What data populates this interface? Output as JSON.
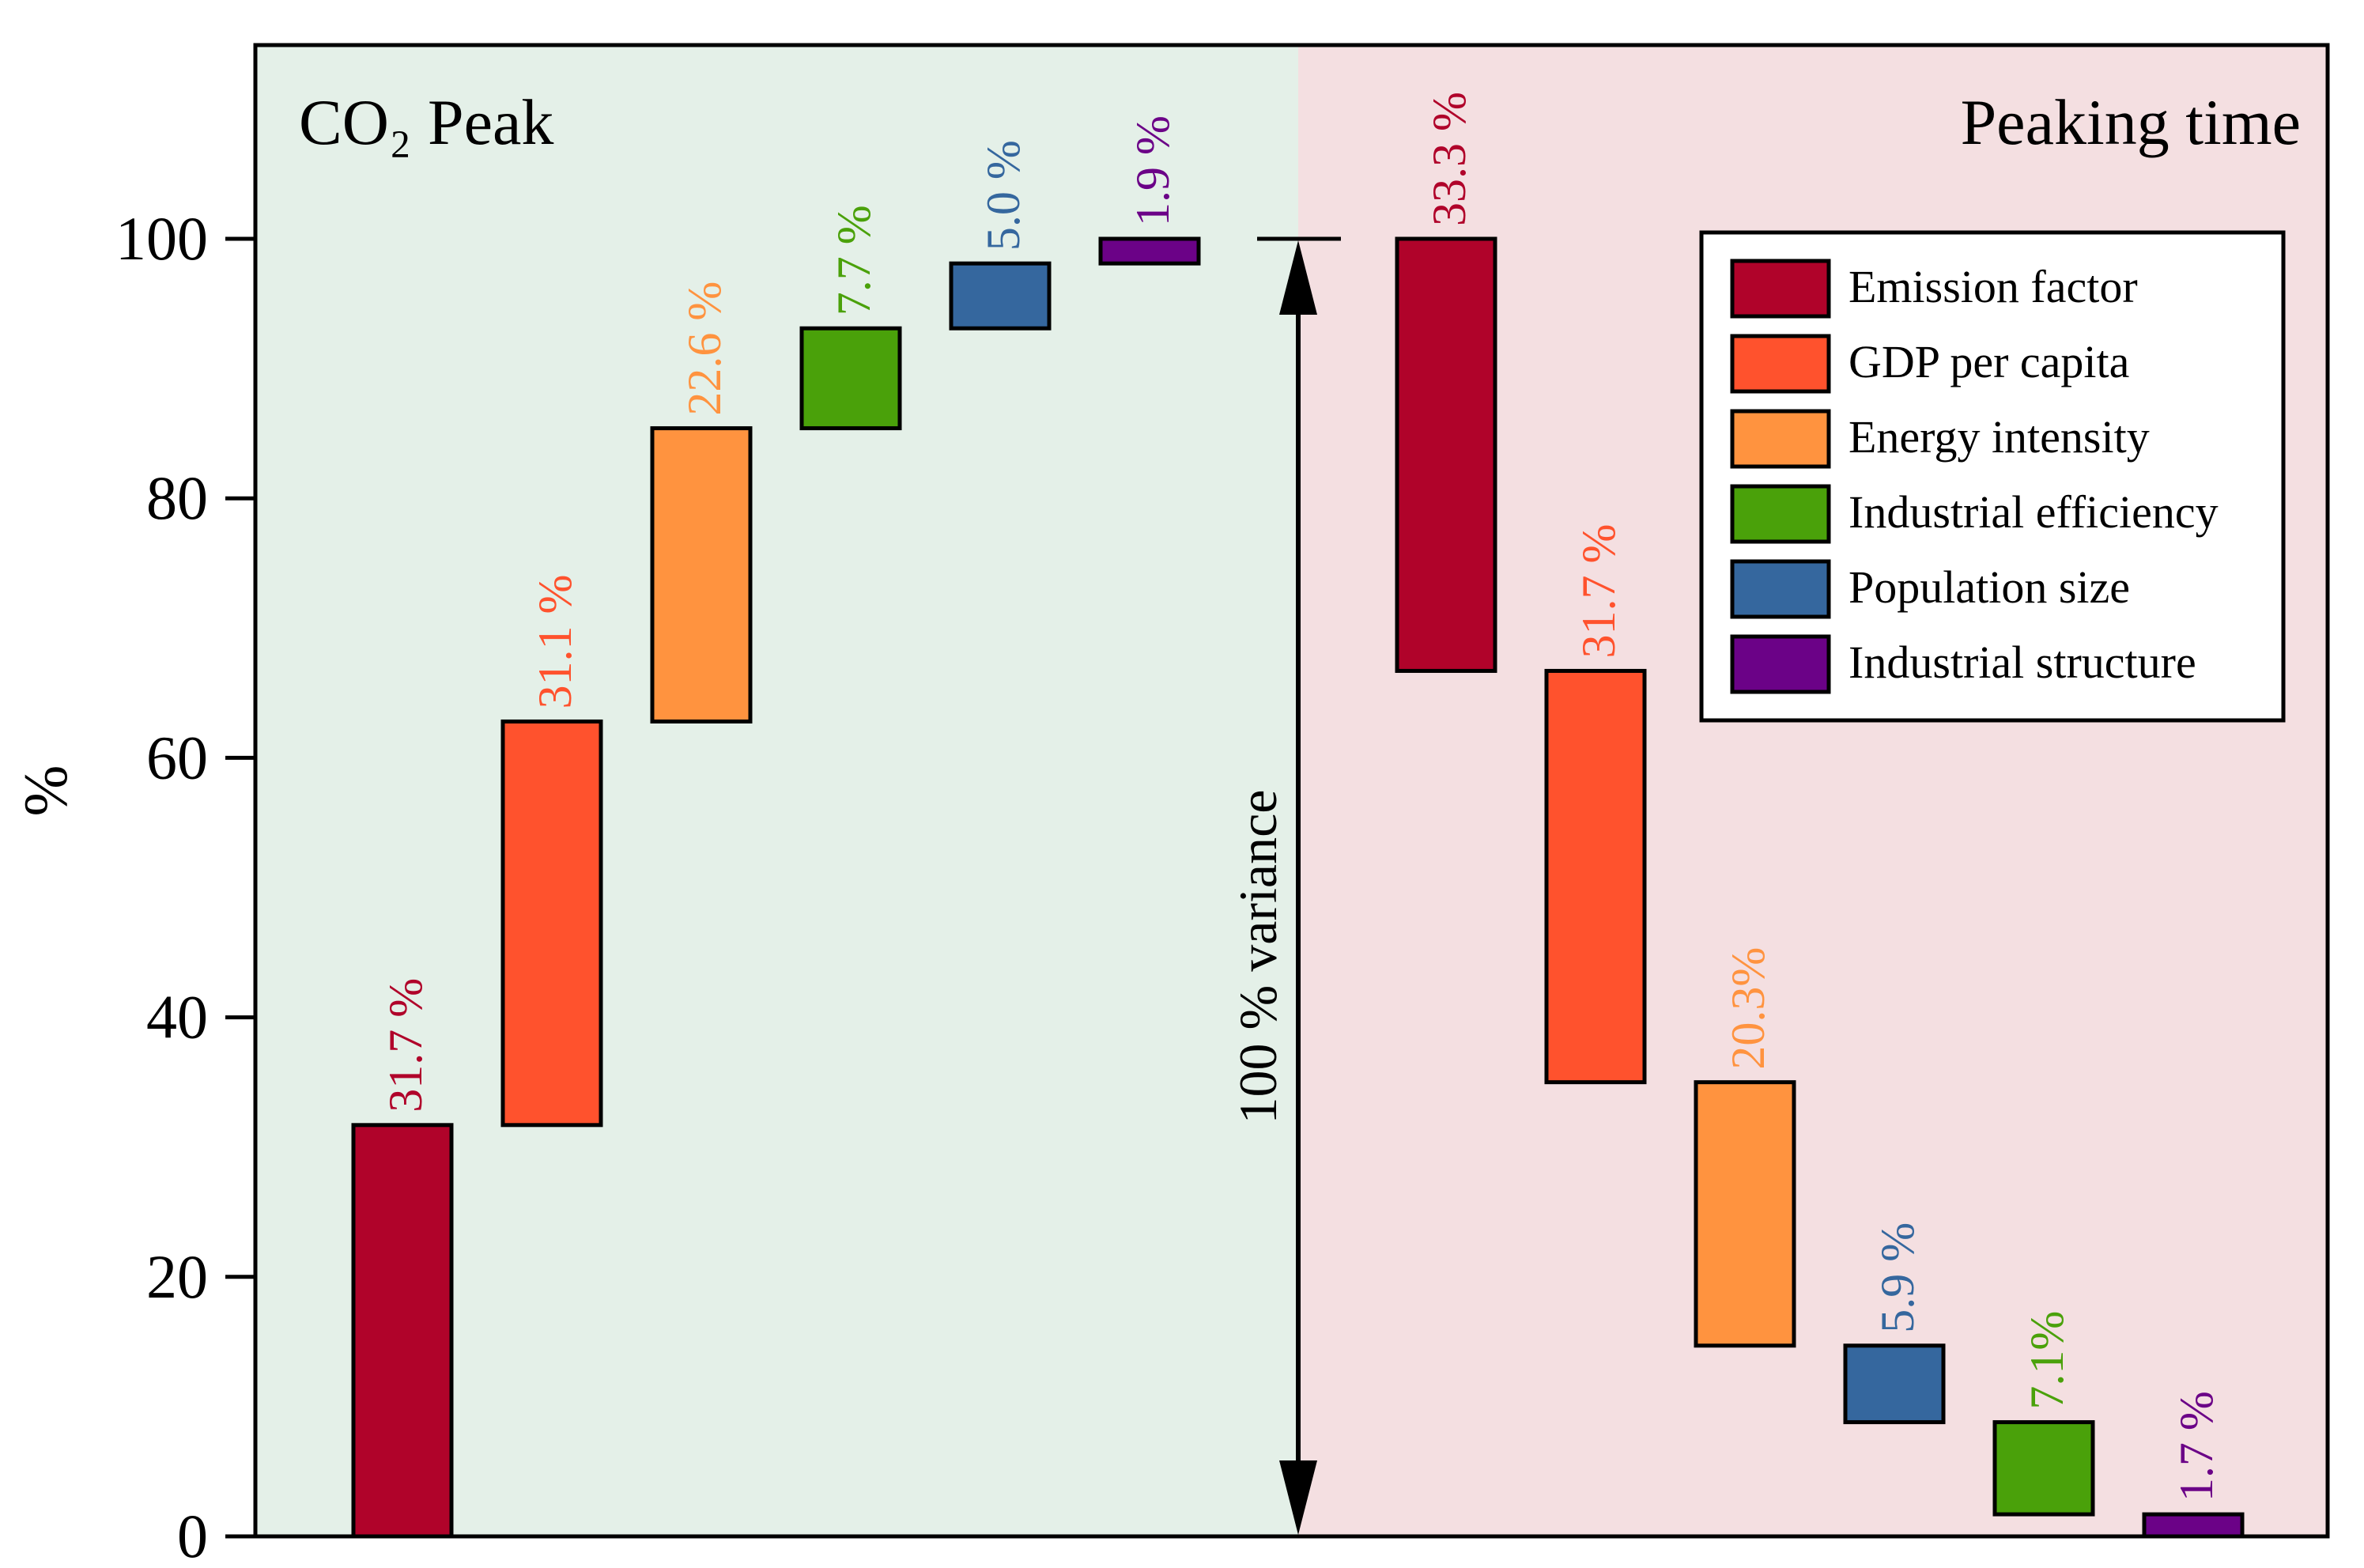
{
  "chart_data": {
    "type": "bar",
    "subtype": "waterfall",
    "ylabel": "%",
    "ylim": [
      0,
      115
    ],
    "yticks": [
      0,
      20,
      40,
      60,
      80,
      100
    ],
    "grid": false,
    "legend_position": "top-right",
    "variance_annotation": "100 % variance",
    "panels": [
      {
        "name": "co2-peak",
        "title": "CO₂ Peak",
        "background": "#e4f0e8",
        "direction": "up",
        "bars": [
          {
            "factor": "Emission factor",
            "start": 0,
            "end": 31.7,
            "label": "31.7 %"
          },
          {
            "factor": "GDP per capita",
            "start": 31.7,
            "end": 62.8,
            "label": "31.1 %"
          },
          {
            "factor": "Energy intensity",
            "start": 62.8,
            "end": 85.4,
            "label": "22.6 %"
          },
          {
            "factor": "Industrial efficiency",
            "start": 85.4,
            "end": 93.1,
            "label": "7.7 %"
          },
          {
            "factor": "Population size",
            "start": 93.1,
            "end": 98.1,
            "label": "5.0 %"
          },
          {
            "factor": "Industrial structure",
            "start": 98.1,
            "end": 100,
            "label": "1.9 %"
          }
        ]
      },
      {
        "name": "peaking-time",
        "title": "Peaking time",
        "background": "#f4dfe1",
        "direction": "down",
        "bars": [
          {
            "factor": "Emission factor",
            "start": 100,
            "end": 66.7,
            "label": "33.3 %"
          },
          {
            "factor": "GDP per capita",
            "start": 66.7,
            "end": 35.0,
            "label": "31.7 %"
          },
          {
            "factor": "Energy intensity",
            "start": 35.0,
            "end": 14.7,
            "label": "20.3%"
          },
          {
            "factor": "Population size",
            "start": 14.7,
            "end": 8.8,
            "label": "5.9 %"
          },
          {
            "factor": "Industrial efficiency",
            "start": 8.8,
            "end": 1.7,
            "label": "7.1%"
          },
          {
            "factor": "Industrial structure",
            "start": 1.7,
            "end": 0,
            "label": "1.7 %"
          }
        ]
      }
    ],
    "legend": [
      {
        "label": "Emission factor",
        "color": "#b0032a"
      },
      {
        "label": "GDP per capita",
        "color": "#ff522d"
      },
      {
        "label": "Energy intensity",
        "color": "#ff933f"
      },
      {
        "label": "Industrial efficiency",
        "color": "#4aa10a"
      },
      {
        "label": "Population size",
        "color": "#35679e"
      },
      {
        "label": "Industrial structure",
        "color": "#6b0287"
      }
    ]
  }
}
